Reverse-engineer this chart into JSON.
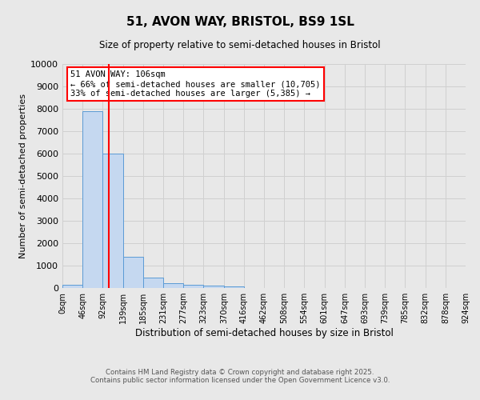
{
  "title": "51, AVON WAY, BRISTOL, BS9 1SL",
  "subtitle": "Size of property relative to semi-detached houses in Bristol",
  "xlabel": "Distribution of semi-detached houses by size in Bristol",
  "ylabel": "Number of semi-detached properties",
  "footer_line1": "Contains HM Land Registry data © Crown copyright and database right 2025.",
  "footer_line2": "Contains public sector information licensed under the Open Government Licence v3.0.",
  "annotation_line1": "51 AVON WAY: 106sqm",
  "annotation_line2": "← 66% of semi-detached houses are smaller (10,705)",
  "annotation_line3": "33% of semi-detached houses are larger (5,385) →",
  "property_size": 106,
  "bar_edges": [
    0,
    46,
    92,
    139,
    185,
    231,
    277,
    323,
    370,
    416,
    462,
    508,
    554,
    601,
    647,
    693,
    739,
    785,
    832,
    878,
    924
  ],
  "bar_labels": [
    "0sqm",
    "46sqm",
    "92sqm",
    "139sqm",
    "185sqm",
    "231sqm",
    "277sqm",
    "323sqm",
    "370sqm",
    "416sqm",
    "462sqm",
    "508sqm",
    "554sqm",
    "601sqm",
    "647sqm",
    "693sqm",
    "739sqm",
    "785sqm",
    "832sqm",
    "878sqm",
    "924sqm"
  ],
  "bar_values": [
    130,
    7900,
    6000,
    1400,
    480,
    230,
    130,
    100,
    60,
    0,
    0,
    0,
    0,
    0,
    0,
    0,
    0,
    0,
    0,
    0
  ],
  "bar_color": "#c5d8f0",
  "bar_edge_color": "#5b9bd5",
  "red_line_x": 106,
  "ylim": [
    0,
    10000
  ],
  "yticks": [
    0,
    1000,
    2000,
    3000,
    4000,
    5000,
    6000,
    7000,
    8000,
    9000,
    10000
  ],
  "annotation_box_color": "white",
  "annotation_box_edge_color": "red",
  "grid_color": "#d0d0d0",
  "background_color": "#e8e8e8"
}
